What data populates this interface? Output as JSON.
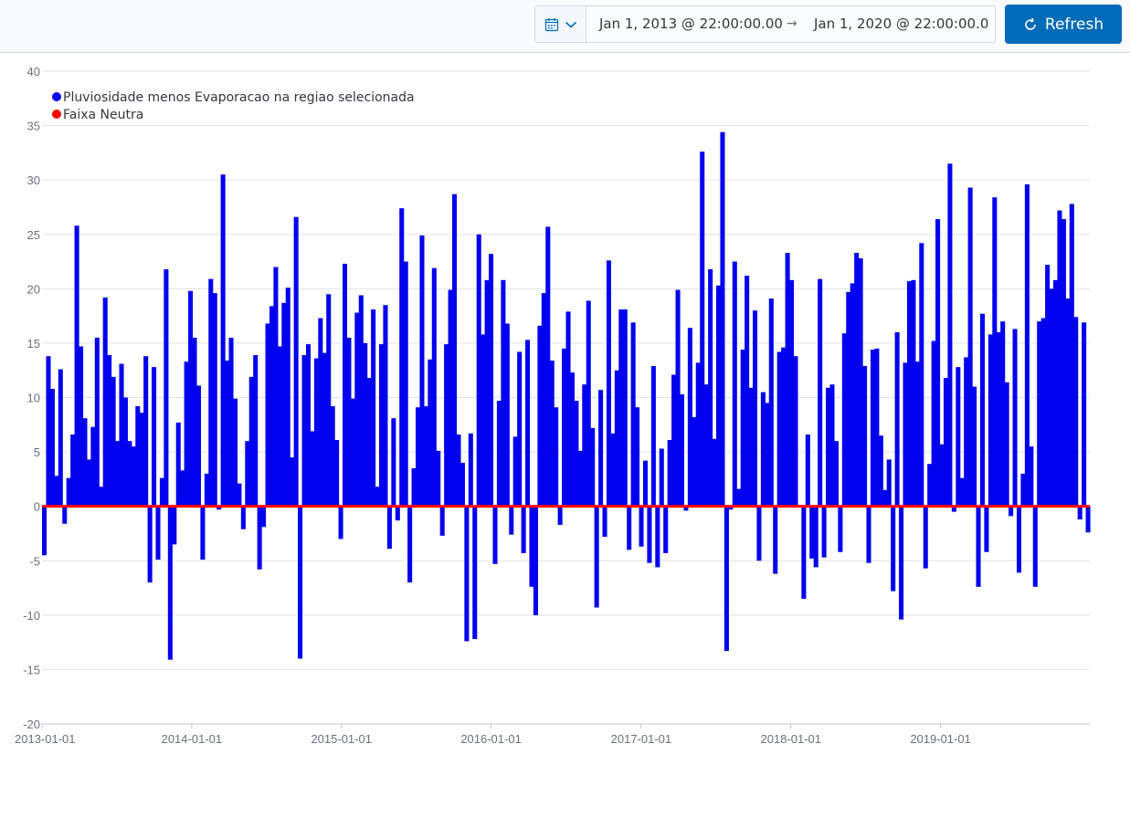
{
  "toolbar": {
    "start_date": "Jan 1, 2013 @ 22:00:00.00",
    "end_date": "Jan 1, 2020 @ 22:00:00.0",
    "refresh_label": "Refresh",
    "calendar_icon": "calendar-icon",
    "chevron_icon": "chevron-down-icon",
    "arrow_icon": "arrow-right-icon",
    "refresh_icon": "refresh-icon",
    "accent_color": "#006bb8"
  },
  "chart_data": {
    "type": "bar",
    "ylim": [
      -20,
      40
    ],
    "yticks": [
      -20,
      -15,
      -10,
      -5,
      0,
      5,
      10,
      15,
      20,
      25,
      30,
      35,
      40
    ],
    "xlim": [
      "2013-01-01",
      "2019-12-31"
    ],
    "xticks": [
      "2013-01-01",
      "2014-01-01",
      "2015-01-01",
      "2016-01-01",
      "2017-01-01",
      "2018-01-01",
      "2019-01-01"
    ],
    "grid": true,
    "legend_position": "top-left",
    "series": [
      {
        "name": "Pluviosidade menos Evaporacao na regiao selecionada",
        "color": "#0000ee",
        "values": [
          -4.5,
          13.8,
          10.8,
          2.8,
          12.6,
          -1.6,
          2.6,
          6.6,
          25.8,
          14.7,
          8.1,
          4.3,
          7.3,
          15.5,
          1.8,
          19.2,
          13.9,
          11.9,
          6.0,
          13.1,
          10.0,
          6.0,
          5.5,
          9.2,
          8.6,
          13.8,
          -7.0,
          12.8,
          -4.9,
          2.6,
          21.8,
          -14.1,
          -3.5,
          7.7,
          3.3,
          13.3,
          19.8,
          15.5,
          11.1,
          -4.9,
          3.0,
          20.9,
          19.6,
          -0.3,
          30.5,
          13.4,
          15.5,
          9.9,
          2.1,
          -2.1,
          6.0,
          11.9,
          13.9,
          -5.8,
          -1.9,
          16.8,
          18.4,
          22.0,
          14.7,
          18.7,
          20.1,
          4.5,
          26.6,
          -14.0,
          13.9,
          14.9,
          6.9,
          13.6,
          17.3,
          14.1,
          19.5,
          9.2,
          6.1,
          -3.0,
          22.3,
          15.5,
          9.9,
          17.8,
          19.4,
          15.0,
          11.8,
          18.1,
          1.8,
          14.9,
          18.5,
          -3.9,
          8.1,
          -1.3,
          27.4,
          22.5,
          -7.0,
          3.5,
          9.1,
          24.9,
          9.2,
          13.5,
          21.9,
          5.1,
          -2.7,
          14.9,
          19.9,
          28.7,
          6.6,
          4.0,
          -12.4,
          6.7,
          -12.2,
          25.0,
          15.8,
          20.8,
          23.2,
          -5.3,
          9.7,
          20.8,
          16.8,
          -2.6,
          6.4,
          14.2,
          -4.3,
          15.3,
          -7.4,
          -10.0,
          16.6,
          19.6,
          25.7,
          13.4,
          9.1,
          -1.7,
          14.5,
          17.9,
          12.3,
          9.7,
          5.1,
          11.2,
          18.9,
          7.2,
          -9.3,
          10.7,
          -2.8,
          22.6,
          6.7,
          12.5,
          18.1,
          18.1,
          -4.0,
          16.9,
          9.1,
          -3.7,
          4.2,
          -5.2,
          12.9,
          -5.6,
          5.3,
          -4.3,
          6.1,
          12.1,
          19.9,
          10.3,
          -0.4,
          16.4,
          8.2,
          13.2,
          32.6,
          11.2,
          21.8,
          6.2,
          20.3,
          34.4,
          -13.3,
          -0.3,
          22.5,
          1.6,
          14.4,
          21.2,
          10.9,
          18.0,
          -5.0,
          10.5,
          9.5,
          19.1,
          -6.2,
          14.2,
          14.6,
          23.3,
          20.8,
          13.8,
          0.0,
          -8.5,
          6.6,
          -4.8,
          -5.6,
          20.9,
          -4.7,
          10.9,
          11.2,
          6.0,
          -4.2,
          15.9,
          19.7,
          20.5,
          23.3,
          22.8,
          12.9,
          -5.2,
          14.4,
          14.5,
          6.5,
          1.5,
          4.3,
          -7.8,
          16.0,
          -10.4,
          13.2,
          20.7,
          20.8,
          13.3,
          24.2,
          -5.7,
          3.9,
          15.2,
          26.4,
          5.7,
          11.8,
          31.5,
          -0.5,
          12.8,
          2.6,
          13.7,
          29.3,
          11.0,
          -7.4,
          17.7,
          -4.2,
          15.8,
          28.4,
          16.0,
          17.0,
          11.4,
          -0.9,
          16.3,
          -6.1,
          3.0,
          29.6,
          5.5,
          -7.4,
          17.0,
          17.3,
          22.2,
          20.0,
          20.8,
          27.2,
          26.4,
          19.1,
          27.8,
          17.4,
          -1.2,
          16.9,
          -2.4
        ]
      },
      {
        "name": "Faixa Neutra",
        "color": "#ff0000",
        "values": [
          0,
          0
        ]
      }
    ]
  }
}
